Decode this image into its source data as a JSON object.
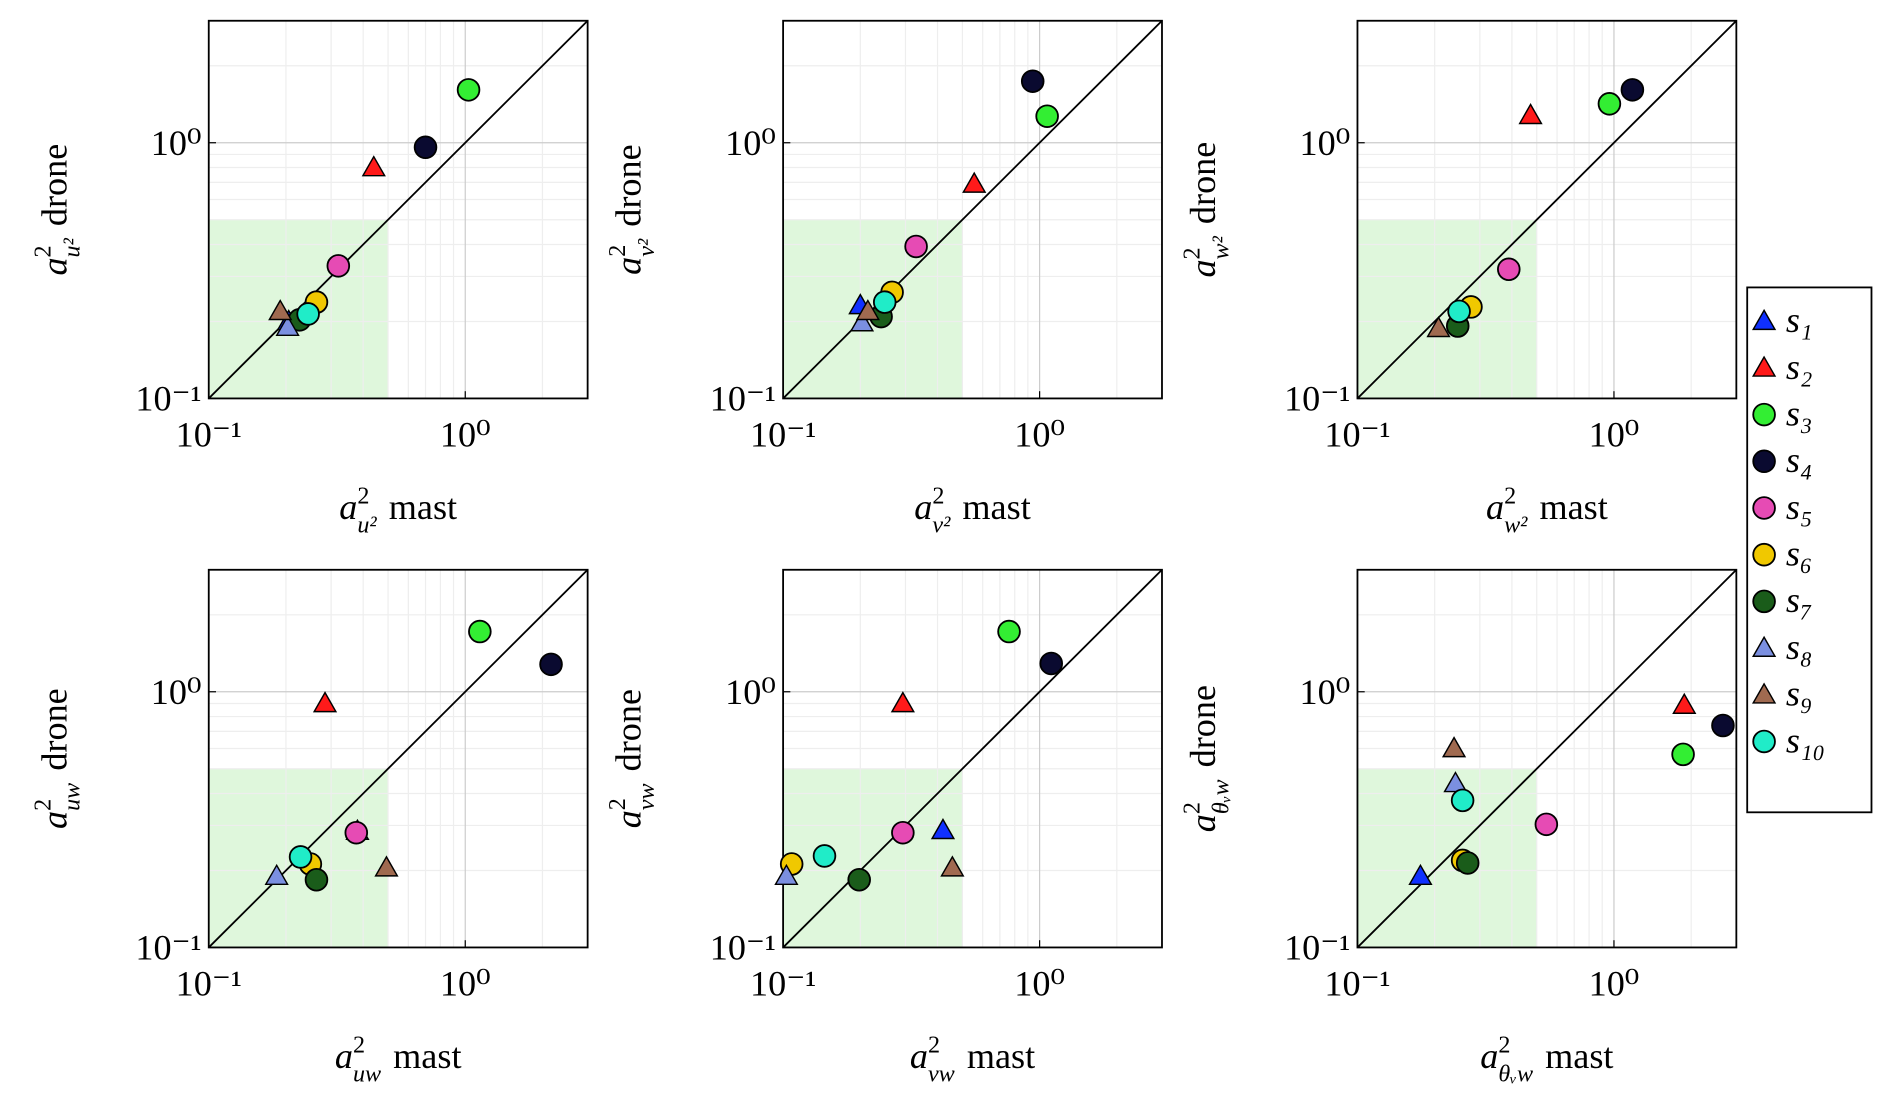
{
  "legend": [
    {
      "name": "s₁",
      "color": "#1030ff",
      "marker": "triangle"
    },
    {
      "name": "s₂",
      "color": "#ff1a1a",
      "marker": "triangle"
    },
    {
      "name": "s₃",
      "color": "#33ee33",
      "marker": "circle"
    },
    {
      "name": "s₄",
      "color": "#0a0a30",
      "marker": "circle"
    },
    {
      "name": "s₅",
      "color": "#e64bb4",
      "marker": "circle"
    },
    {
      "name": "s₆",
      "color": "#f0c800",
      "marker": "circle"
    },
    {
      "name": "s₇",
      "color": "#1a5c1a",
      "marker": "circle"
    },
    {
      "name": "s₈",
      "color": "#7b8fe0",
      "marker": "triangle"
    },
    {
      "name": "s₉",
      "color": "#a06a50",
      "marker": "triangle"
    },
    {
      "name": "s₁₀",
      "color": "#20ecc8",
      "marker": "circle"
    }
  ],
  "chart_data": [
    {
      "type": "scatter",
      "xlabel": {
        "symbol": "a",
        "sup": "2",
        "sub": "u²",
        "text": "mast"
      },
      "ylabel": {
        "symbol": "a",
        "sup": "2",
        "sub": "u²",
        "text": "drone"
      },
      "x": [
        0.205,
        0.44,
        1.03,
        0.7,
        0.32,
        0.263,
        0.226,
        0.203,
        0.19,
        0.244
      ],
      "values": [
        0.2,
        0.8,
        1.61,
        0.96,
        0.33,
        0.238,
        0.203,
        0.19,
        0.219,
        0.214
      ],
      "xlim": [
        0.1,
        3
      ],
      "ylim": [
        0.1,
        3
      ],
      "xticks": [
        {
          "value": 0.1,
          "label": "10⁻¹"
        },
        {
          "value": 1,
          "label": "10⁰"
        }
      ],
      "yticks": [
        {
          "value": 0.1,
          "label": "10⁻¹"
        },
        {
          "value": 1,
          "label": "10⁰"
        }
      ],
      "log": true,
      "grid": true,
      "diagonal": true,
      "highlight": {
        "xlim": [
          0.1,
          0.5
        ],
        "ylim": [
          0.1,
          0.5
        ],
        "color": "#dff7dc"
      }
    },
    {
      "type": "scatter",
      "xlabel": {
        "symbol": "a",
        "sup": "2",
        "sub": "v²",
        "text": "mast"
      },
      "ylabel": {
        "symbol": "a",
        "sup": "2",
        "sub": "v²",
        "text": "drone"
      },
      "x": [
        0.2,
        0.556,
        1.07,
        0.94,
        0.33,
        0.266,
        0.241,
        0.203,
        0.214,
        0.249
      ],
      "values": [
        0.231,
        0.69,
        1.27,
        1.74,
        0.393,
        0.26,
        0.209,
        0.198,
        0.219,
        0.238
      ],
      "xlim": [
        0.1,
        3
      ],
      "ylim": [
        0.1,
        3
      ],
      "xticks": [
        {
          "value": 0.1,
          "label": "10⁻¹"
        },
        {
          "value": 1,
          "label": "10⁰"
        }
      ],
      "yticks": [
        {
          "value": 0.1,
          "label": "10⁻¹"
        },
        {
          "value": 1,
          "label": "10⁰"
        }
      ],
      "log": true,
      "grid": true,
      "diagonal": true,
      "highlight": {
        "xlim": [
          0.1,
          0.5
        ],
        "ylim": [
          0.1,
          0.5
        ],
        "color": "#dff7dc"
      }
    },
    {
      "type": "scatter",
      "xlabel": {
        "symbol": "a",
        "sup": "2",
        "sub": "w²",
        "text": "mast"
      },
      "ylabel": {
        "symbol": "a",
        "sup": "2",
        "sub": "w²",
        "text": "drone"
      },
      "x": [
        null,
        0.473,
        0.96,
        1.18,
        0.389,
        0.277,
        0.246,
        null,
        0.207,
        0.249
      ],
      "values": [
        null,
        1.28,
        1.42,
        1.61,
        0.32,
        0.228,
        0.192,
        null,
        0.188,
        0.219
      ],
      "xlim": [
        0.1,
        3
      ],
      "ylim": [
        0.1,
        3
      ],
      "xticks": [
        {
          "value": 0.1,
          "label": "10⁻¹"
        },
        {
          "value": 1,
          "label": "10⁰"
        }
      ],
      "yticks": [
        {
          "value": 0.1,
          "label": "10⁻¹"
        },
        {
          "value": 1,
          "label": "10⁰"
        }
      ],
      "log": true,
      "grid": true,
      "diagonal": true,
      "highlight": {
        "xlim": [
          0.1,
          0.5
        ],
        "ylim": [
          0.1,
          0.5
        ],
        "color": "#dff7dc"
      }
    },
    {
      "type": "scatter",
      "xlabel": {
        "symbol": "a",
        "sup": "2",
        "sub": "uw",
        "text": "mast"
      },
      "ylabel": {
        "symbol": "a",
        "sup": "2",
        "sub": "uw",
        "text": "drone"
      },
      "x": [
        0.38,
        0.284,
        1.14,
        2.16,
        0.376,
        0.249,
        0.263,
        0.184,
        0.493,
        0.228
      ],
      "values": [
        0.285,
        0.9,
        1.72,
        1.28,
        0.281,
        0.212,
        0.184,
        0.19,
        0.205,
        0.226
      ],
      "xlim": [
        0.1,
        3
      ],
      "ylim": [
        0.1,
        3
      ],
      "xticks": [
        {
          "value": 0.1,
          "label": "10⁻¹"
        },
        {
          "value": 1,
          "label": "10⁰"
        }
      ],
      "yticks": [
        {
          "value": 0.1,
          "label": "10⁻¹"
        },
        {
          "value": 1,
          "label": "10⁰"
        }
      ],
      "log": true,
      "grid": true,
      "diagonal": true,
      "highlight": {
        "xlim": [
          0.1,
          0.5
        ],
        "ylim": [
          0.1,
          0.5
        ],
        "color": "#dff7dc"
      }
    },
    {
      "type": "scatter",
      "xlabel": {
        "symbol": "a",
        "sup": "2",
        "sub": "vw",
        "text": "mast"
      },
      "ylabel": {
        "symbol": "a",
        "sup": "2",
        "sub": "vw",
        "text": "drone"
      },
      "x": [
        0.42,
        0.293,
        0.76,
        1.11,
        0.293,
        0.108,
        0.198,
        0.103,
        0.457,
        0.145
      ],
      "values": [
        0.287,
        0.9,
        1.72,
        1.29,
        0.281,
        0.212,
        0.184,
        0.19,
        0.205,
        0.228
      ],
      "xlim": [
        0.1,
        3
      ],
      "ylim": [
        0.1,
        3
      ],
      "xticks": [
        {
          "value": 0.1,
          "label": "10⁻¹"
        },
        {
          "value": 1,
          "label": "10⁰"
        }
      ],
      "yticks": [
        {
          "value": 0.1,
          "label": "10⁻¹"
        },
        {
          "value": 1,
          "label": "10⁰"
        }
      ],
      "log": true,
      "grid": true,
      "diagonal": true,
      "highlight": {
        "xlim": [
          0.1,
          0.5
        ],
        "ylim": [
          0.1,
          0.5
        ],
        "color": "#dff7dc"
      }
    },
    {
      "type": "scatter",
      "xlabel": {
        "symbol": "a",
        "sup": "2",
        "sub": "θᵥw",
        "text": "mast"
      },
      "ylabel": {
        "symbol": "a",
        "sup": "2",
        "sub": "θᵥw",
        "text": "drone"
      },
      "x": [
        0.176,
        1.88,
        1.86,
        2.66,
        0.545,
        0.257,
        0.269,
        0.241,
        0.238,
        0.257
      ],
      "values": [
        0.19,
        0.887,
        0.569,
        0.738,
        0.303,
        0.219,
        0.214,
        0.438,
        0.6,
        0.376
      ],
      "xlim": [
        0.1,
        3
      ],
      "ylim": [
        0.1,
        3
      ],
      "xticks": [
        {
          "value": 0.1,
          "label": "10⁻¹"
        },
        {
          "value": 1,
          "label": "10⁰"
        }
      ],
      "yticks": [
        {
          "value": 0.1,
          "label": "10⁻¹"
        },
        {
          "value": 1,
          "label": "10⁰"
        }
      ],
      "log": true,
      "grid": true,
      "diagonal": true,
      "highlight": {
        "xlim": [
          0.1,
          0.5
        ],
        "ylim": [
          0.1,
          0.5
        ],
        "color": "#dff7dc"
      }
    }
  ]
}
